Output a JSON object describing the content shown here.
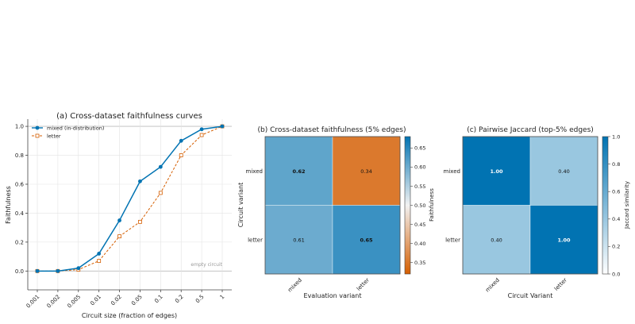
{
  "chart_data": [
    {
      "type": "line",
      "title": "(a) Cross-dataset faithfulness curves",
      "xlabel": "Circuit size (fraction of edges)",
      "ylabel": "Faithfulness",
      "x": [
        "0.001",
        "0.002",
        "0.005",
        "0.01",
        "0.02",
        "0.05",
        "0.1",
        "0.2",
        "0.5",
        "1"
      ],
      "ylim": [
        -0.13,
        1.05
      ],
      "yticks": [
        "0.0",
        "0.2",
        "0.4",
        "0.6",
        "0.8",
        "1.0"
      ],
      "grid": true,
      "legend_position": "top-left",
      "annotation": "empty circuit",
      "series": [
        {
          "name": "mixed (in-distribution)",
          "color": "#0173b2",
          "style": "solid",
          "marker": "circle",
          "values": [
            0.0,
            0.0,
            0.02,
            0.12,
            0.35,
            0.62,
            0.72,
            0.9,
            0.98,
            1.0
          ]
        },
        {
          "name": "letter",
          "color": "#d55e00",
          "style": "dashed",
          "marker": "square",
          "values": [
            0.0,
            0.0,
            0.01,
            0.07,
            0.24,
            0.34,
            0.54,
            0.8,
            0.94,
            1.0
          ]
        }
      ]
    },
    {
      "type": "heatmap",
      "title": "(b) Cross-dataset faithfulness (5% edges)",
      "xlabel": "Evaluation variant",
      "ylabel": "Circuit variant",
      "x_categories": [
        "mixed",
        "letter"
      ],
      "y_categories": [
        "mixed",
        "letter"
      ],
      "values": [
        [
          0.62,
          0.34
        ],
        [
          0.61,
          0.65
        ]
      ],
      "cell_labels": [
        [
          "0.62",
          "0.34"
        ],
        [
          "0.61",
          "0.65"
        ]
      ],
      "bold_cells": [
        [
          true,
          false
        ],
        [
          false,
          true
        ]
      ],
      "colorbar": {
        "label": "Faithfulness",
        "min": 0.32,
        "max": 0.68,
        "ticks": [
          "0.35",
          "0.40",
          "0.45",
          "0.50",
          "0.55",
          "0.60",
          "0.65"
        ],
        "tick_values": [
          0.35,
          0.4,
          0.45,
          0.5,
          0.55,
          0.6,
          0.65
        ],
        "colormap": "diverging-orange-blue"
      }
    },
    {
      "type": "heatmap",
      "title": "(c) Pairwise Jaccard (top-5% edges)",
      "xlabel": "Circuit Variant",
      "ylabel": "",
      "x_categories": [
        "mixed",
        "letter"
      ],
      "y_categories": [
        "mixed",
        "letter"
      ],
      "values": [
        [
          1.0,
          0.4
        ],
        [
          0.4,
          1.0
        ]
      ],
      "cell_labels": [
        [
          "1.00",
          "0.40"
        ],
        [
          "0.40",
          "1.00"
        ]
      ],
      "colorbar": {
        "label": "Jaccard similarity",
        "min": 0.0,
        "max": 1.0,
        "ticks": [
          "0.0",
          "0.2",
          "0.4",
          "0.6",
          "0.8",
          "1.0"
        ],
        "tick_values": [
          0.0,
          0.2,
          0.4,
          0.6,
          0.8,
          1.0
        ],
        "colormap": "white-blue"
      }
    }
  ]
}
